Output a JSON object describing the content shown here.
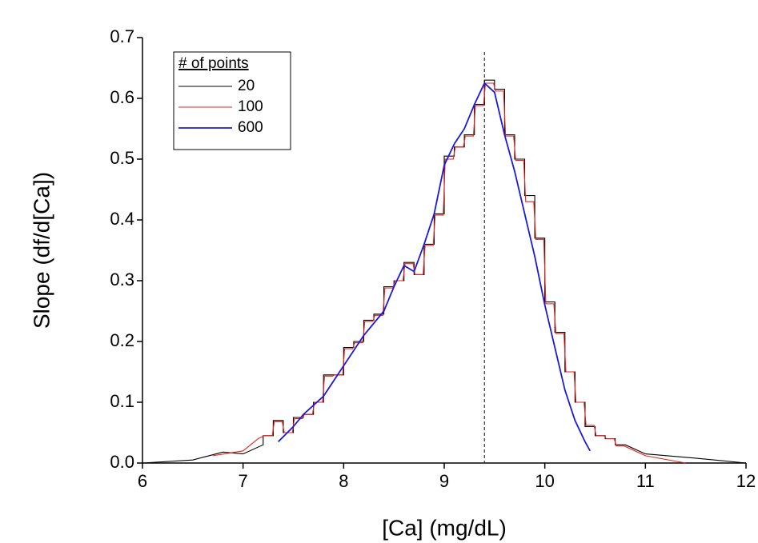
{
  "chart_data": {
    "type": "line",
    "x_label": "[Ca] (mg/dL)",
    "y_label": "Slope (df/d[Ca])",
    "legend_title": "# of points",
    "legend_position": "upper-left",
    "reference_line_x": 9.4,
    "xlim": [
      6,
      12
    ],
    "xticks": [
      6,
      7,
      8,
      9,
      10,
      11,
      12
    ],
    "ylim": [
      0,
      0.7
    ],
    "yticks": [
      {
        "value": 0,
        "label": "0.0"
      },
      0.1,
      0.2,
      0.3,
      0.4,
      0.5,
      0.6,
      0.7
    ],
    "series": [
      {
        "name": "20",
        "color": "#000000",
        "x": [
          6.0,
          6.5,
          6.8,
          7.0,
          7.2,
          7.2,
          7.3,
          7.3,
          7.4,
          7.4,
          7.5,
          7.5,
          7.6,
          7.6,
          7.7,
          7.7,
          7.8,
          7.8,
          7.9,
          7.9,
          8.0,
          8.0,
          8.1,
          8.1,
          8.2,
          8.2,
          8.3,
          8.3,
          8.4,
          8.4,
          8.5,
          8.5,
          8.6,
          8.6,
          8.7,
          8.7,
          8.8,
          8.8,
          8.9,
          8.9,
          9.0,
          9.0,
          9.1,
          9.1,
          9.2,
          9.2,
          9.3,
          9.3,
          9.4,
          9.4,
          9.5,
          9.5,
          9.6,
          9.6,
          9.7,
          9.7,
          9.8,
          9.8,
          9.9,
          9.9,
          10.0,
          10.0,
          10.1,
          10.1,
          10.2,
          10.2,
          10.3,
          10.3,
          10.4,
          10.4,
          10.5,
          10.5,
          10.6,
          10.6,
          10.7,
          10.7,
          10.8,
          11.0,
          11.5,
          12.0
        ],
        "values": [
          0.0,
          0.005,
          0.018,
          0.015,
          0.03,
          0.045,
          0.045,
          0.07,
          0.07,
          0.05,
          0.05,
          0.075,
          0.075,
          0.08,
          0.08,
          0.1,
          0.1,
          0.145,
          0.145,
          0.145,
          0.145,
          0.19,
          0.19,
          0.2,
          0.2,
          0.235,
          0.235,
          0.245,
          0.245,
          0.29,
          0.29,
          0.3,
          0.3,
          0.33,
          0.33,
          0.31,
          0.31,
          0.36,
          0.36,
          0.41,
          0.41,
          0.505,
          0.505,
          0.52,
          0.52,
          0.54,
          0.54,
          0.59,
          0.59,
          0.63,
          0.63,
          0.615,
          0.615,
          0.54,
          0.54,
          0.5,
          0.5,
          0.44,
          0.44,
          0.37,
          0.37,
          0.265,
          0.265,
          0.215,
          0.215,
          0.15,
          0.15,
          0.1,
          0.1,
          0.06,
          0.06,
          0.045,
          0.045,
          0.04,
          0.04,
          0.03,
          0.03,
          0.015,
          0.008,
          0.0
        ]
      },
      {
        "name": "100",
        "color": "#e8201c",
        "x": [
          6.7,
          7.0,
          7.15,
          7.21,
          7.29,
          7.31,
          7.39,
          7.41,
          7.49,
          7.51,
          7.59,
          7.61,
          7.69,
          7.71,
          7.79,
          7.81,
          7.89,
          7.91,
          7.99,
          8.01,
          8.09,
          8.11,
          8.19,
          8.21,
          8.29,
          8.31,
          8.39,
          8.41,
          8.49,
          8.51,
          8.59,
          8.61,
          8.69,
          8.71,
          8.79,
          8.81,
          8.89,
          8.91,
          8.99,
          9.01,
          9.09,
          9.11,
          9.19,
          9.21,
          9.29,
          9.31,
          9.39,
          9.41,
          9.49,
          9.51,
          9.59,
          9.61,
          9.69,
          9.71,
          9.79,
          9.81,
          9.89,
          9.91,
          9.99,
          10.01,
          10.09,
          10.11,
          10.19,
          10.21,
          10.29,
          10.31,
          10.39,
          10.41,
          10.49,
          10.51,
          10.59,
          10.61,
          10.69,
          10.71,
          10.79,
          11.0,
          11.4
        ],
        "values": [
          0.012,
          0.02,
          0.04,
          0.045,
          0.045,
          0.068,
          0.068,
          0.05,
          0.05,
          0.073,
          0.073,
          0.08,
          0.08,
          0.1,
          0.1,
          0.143,
          0.143,
          0.145,
          0.145,
          0.188,
          0.188,
          0.198,
          0.198,
          0.233,
          0.233,
          0.243,
          0.243,
          0.288,
          0.288,
          0.3,
          0.3,
          0.328,
          0.328,
          0.31,
          0.31,
          0.358,
          0.358,
          0.408,
          0.408,
          0.5,
          0.5,
          0.52,
          0.52,
          0.538,
          0.538,
          0.588,
          0.588,
          0.625,
          0.625,
          0.612,
          0.612,
          0.538,
          0.538,
          0.498,
          0.498,
          0.43,
          0.43,
          0.368,
          0.368,
          0.262,
          0.262,
          0.213,
          0.213,
          0.15,
          0.15,
          0.1,
          0.1,
          0.062,
          0.062,
          0.045,
          0.045,
          0.04,
          0.04,
          0.028,
          0.028,
          0.012,
          0.0
        ]
      },
      {
        "name": "600",
        "color": "#1a1adc",
        "x": [
          7.35,
          7.5,
          7.6,
          7.8,
          8.0,
          8.2,
          8.4,
          8.5,
          8.6,
          8.7,
          8.8,
          8.9,
          9.0,
          9.1,
          9.2,
          9.3,
          9.4,
          9.5,
          9.6,
          9.7,
          9.8,
          9.9,
          10.0,
          10.1,
          10.2,
          10.3,
          10.4,
          10.45
        ],
        "values": [
          0.035,
          0.06,
          0.08,
          0.11,
          0.16,
          0.21,
          0.25,
          0.29,
          0.325,
          0.315,
          0.36,
          0.41,
          0.49,
          0.525,
          0.55,
          0.59,
          0.625,
          0.61,
          0.54,
          0.48,
          0.41,
          0.34,
          0.26,
          0.19,
          0.12,
          0.07,
          0.035,
          0.02
        ]
      }
    ]
  }
}
